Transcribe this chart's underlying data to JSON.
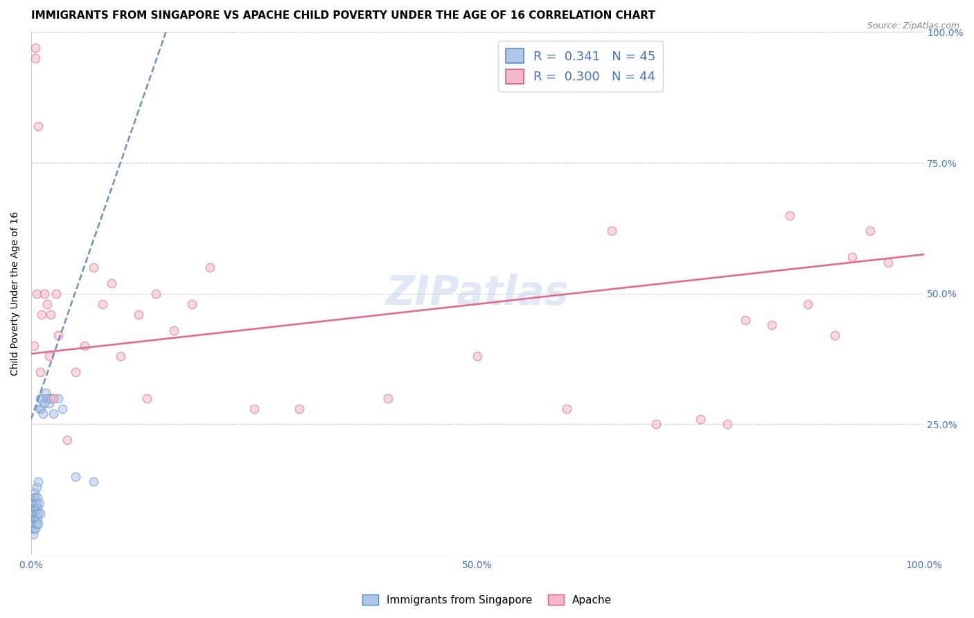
{
  "title": "IMMIGRANTS FROM SINGAPORE VS APACHE CHILD POVERTY UNDER THE AGE OF 16 CORRELATION CHART",
  "source": "Source: ZipAtlas.com",
  "ylabel": "Child Poverty Under the Age of 16",
  "xlim": [
    0.0,
    1.0
  ],
  "ylim": [
    0.0,
    1.0
  ],
  "legend_r_blue": "0.341",
  "legend_n_blue": "45",
  "legend_r_pink": "0.300",
  "legend_n_pink": "44",
  "blue_fill_color": "#aec6e8",
  "blue_edge_color": "#5b8cc8",
  "pink_fill_color": "#f5b8c8",
  "pink_edge_color": "#d06080",
  "blue_trend_color": "#7090c0",
  "pink_trend_color": "#e07090",
  "watermark": "ZIPatlas",
  "blue_scatter_x": [
    0.001,
    0.001,
    0.002,
    0.002,
    0.002,
    0.002,
    0.003,
    0.003,
    0.003,
    0.003,
    0.004,
    0.004,
    0.004,
    0.004,
    0.005,
    0.005,
    0.005,
    0.005,
    0.006,
    0.006,
    0.006,
    0.006,
    0.007,
    0.007,
    0.007,
    0.008,
    0.008,
    0.008,
    0.009,
    0.009,
    0.01,
    0.01,
    0.011,
    0.012,
    0.013,
    0.015,
    0.016,
    0.018,
    0.02,
    0.022,
    0.025,
    0.03,
    0.035,
    0.05,
    0.07
  ],
  "blue_scatter_y": [
    0.05,
    0.06,
    0.04,
    0.07,
    0.08,
    0.1,
    0.05,
    0.07,
    0.09,
    0.11,
    0.06,
    0.08,
    0.1,
    0.12,
    0.05,
    0.07,
    0.09,
    0.11,
    0.06,
    0.08,
    0.1,
    0.13,
    0.07,
    0.09,
    0.11,
    0.06,
    0.08,
    0.14,
    0.1,
    0.28,
    0.08,
    0.3,
    0.28,
    0.3,
    0.27,
    0.29,
    0.31,
    0.3,
    0.29,
    0.3,
    0.27,
    0.3,
    0.28,
    0.15,
    0.14
  ],
  "pink_scatter_x": [
    0.003,
    0.005,
    0.005,
    0.006,
    0.008,
    0.01,
    0.012,
    0.015,
    0.018,
    0.02,
    0.022,
    0.025,
    0.028,
    0.03,
    0.04,
    0.05,
    0.06,
    0.07,
    0.08,
    0.09,
    0.1,
    0.12,
    0.13,
    0.14,
    0.16,
    0.18,
    0.2,
    0.25,
    0.3,
    0.4,
    0.5,
    0.6,
    0.65,
    0.7,
    0.75,
    0.78,
    0.8,
    0.83,
    0.85,
    0.87,
    0.9,
    0.92,
    0.94,
    0.96
  ],
  "pink_scatter_y": [
    0.4,
    0.95,
    0.97,
    0.5,
    0.82,
    0.35,
    0.46,
    0.5,
    0.48,
    0.38,
    0.46,
    0.3,
    0.5,
    0.42,
    0.22,
    0.35,
    0.4,
    0.55,
    0.48,
    0.52,
    0.38,
    0.46,
    0.3,
    0.5,
    0.43,
    0.48,
    0.55,
    0.28,
    0.28,
    0.3,
    0.38,
    0.28,
    0.62,
    0.25,
    0.26,
    0.25,
    0.45,
    0.44,
    0.65,
    0.48,
    0.42,
    0.57,
    0.62,
    0.56
  ],
  "blue_trendline_x": [
    0.0,
    0.155
  ],
  "blue_trendline_y": [
    0.26,
    1.02
  ],
  "pink_trendline_x": [
    0.0,
    1.0
  ],
  "pink_trendline_y": [
    0.385,
    0.575
  ],
  "title_fontsize": 11,
  "axis_label_fontsize": 10,
  "tick_fontsize": 10,
  "legend_fontsize": 13,
  "watermark_fontsize": 42,
  "scatter_size": 80,
  "scatter_alpha": 0.55,
  "scatter_linewidth": 1.0
}
